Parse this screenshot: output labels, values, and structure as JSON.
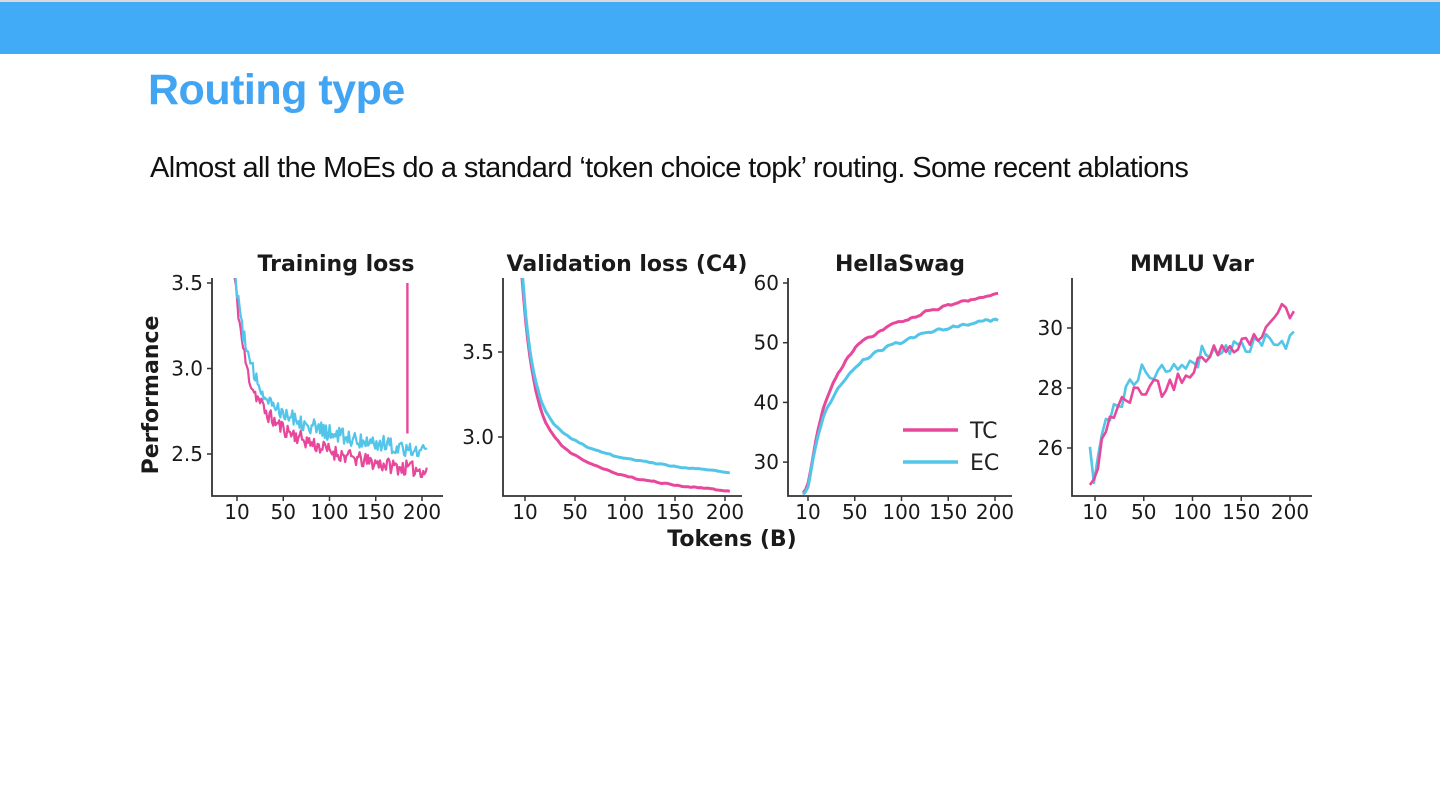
{
  "banner": {
    "color": "#42abf7"
  },
  "slide": {
    "title": "Routing type",
    "title_color": "#41a5f3",
    "body": "Almost all the MoEs do a standard ‘token choice topk’ routing. Some recent ablations"
  },
  "figure": {
    "ylabel": "Performance",
    "xlabel": "Tokens (B)",
    "text_color": "#1a1a1a",
    "axis_color": "#333333",
    "colors": {
      "TC": "#e8489b",
      "EC": "#52c5e8"
    },
    "legend": {
      "entries": [
        "TC",
        "EC"
      ]
    }
  },
  "chart_data": [
    {
      "type": "line",
      "title": "Training loss",
      "xlabel": "Tokens (B)",
      "ylabel": "Performance",
      "xtick_values": [
        10,
        50,
        100,
        150,
        200
      ],
      "xtick_labels": [
        "10",
        "50",
        "100",
        "150",
        "200"
      ],
      "ytick_values": [
        3.5,
        3.0,
        2.5
      ],
      "ytick_labels": [
        "3.5",
        "3.0",
        "2.5"
      ],
      "ylim": [
        2.25,
        3.53
      ],
      "series": [
        {
          "name": "TC",
          "color_key": "TC",
          "anchors": [
            [
              4,
              3.75
            ],
            [
              6,
              3.6
            ],
            [
              8,
              3.5
            ],
            [
              10,
              3.4
            ],
            [
              13,
              3.25
            ],
            [
              16,
              3.13
            ],
            [
              20,
              3.0
            ],
            [
              25,
              2.9
            ],
            [
              30,
              2.84
            ],
            [
              40,
              2.74
            ],
            [
              50,
              2.68
            ],
            [
              60,
              2.64
            ],
            [
              80,
              2.58
            ],
            [
              100,
              2.53
            ],
            [
              120,
              2.49
            ],
            [
              140,
              2.46
            ],
            [
              160,
              2.44
            ],
            [
              180,
              2.42
            ],
            [
              195,
              2.41
            ],
            [
              205,
              2.4
            ]
          ]
        },
        {
          "name": "EC",
          "color_key": "EC",
          "anchors": [
            [
              4,
              3.85
            ],
            [
              6,
              3.7
            ],
            [
              8,
              3.58
            ],
            [
              10,
              3.47
            ],
            [
              13,
              3.33
            ],
            [
              16,
              3.22
            ],
            [
              20,
              3.1
            ],
            [
              25,
              3.0
            ],
            [
              30,
              2.93
            ],
            [
              40,
              2.84
            ],
            [
              50,
              2.78
            ],
            [
              60,
              2.74
            ],
            [
              80,
              2.68
            ],
            [
              100,
              2.63
            ],
            [
              120,
              2.6
            ],
            [
              140,
              2.58
            ],
            [
              160,
              2.56
            ],
            [
              180,
              2.54
            ],
            [
              195,
              2.53
            ],
            [
              205,
              2.52
            ]
          ]
        }
      ],
      "vline": {
        "x": 185,
        "from": 2.62,
        "to": 3.5,
        "series": "TC"
      }
    },
    {
      "type": "line",
      "title": "Validation loss (C4)",
      "xtick_values": [
        10,
        50,
        100,
        150,
        200
      ],
      "xtick_labels": [
        "10",
        "50",
        "100",
        "150",
        "200"
      ],
      "ytick_values": [
        3.5,
        3.0
      ],
      "ytick_labels": [
        "3.5",
        "3.0"
      ],
      "ylim": [
        2.65,
        3.94
      ],
      "series": [
        {
          "name": "TC",
          "color_key": "TC",
          "anchors": [
            [
              7,
              3.95
            ],
            [
              9,
              3.8
            ],
            [
              11,
              3.66
            ],
            [
              14,
              3.5
            ],
            [
              17,
              3.38
            ],
            [
              20,
              3.28
            ],
            [
              25,
              3.16
            ],
            [
              30,
              3.08
            ],
            [
              37,
              3.01
            ],
            [
              45,
              2.95
            ],
            [
              55,
              2.9
            ],
            [
              70,
              2.85
            ],
            [
              85,
              2.81
            ],
            [
              100,
              2.78
            ],
            [
              120,
              2.75
            ],
            [
              140,
              2.73
            ],
            [
              160,
              2.71
            ],
            [
              180,
              2.7
            ],
            [
              205,
              2.68
            ]
          ]
        },
        {
          "name": "EC",
          "color_key": "EC",
          "anchors": [
            [
              7,
              4.0
            ],
            [
              9,
              3.85
            ],
            [
              11,
              3.7
            ],
            [
              14,
              3.54
            ],
            [
              17,
              3.42
            ],
            [
              20,
              3.33
            ],
            [
              25,
              3.22
            ],
            [
              30,
              3.15
            ],
            [
              37,
              3.08
            ],
            [
              45,
              3.03
            ],
            [
              55,
              2.99
            ],
            [
              70,
              2.94
            ],
            [
              85,
              2.91
            ],
            [
              100,
              2.88
            ],
            [
              120,
              2.86
            ],
            [
              140,
              2.84
            ],
            [
              160,
              2.82
            ],
            [
              180,
              2.81
            ],
            [
              205,
              2.79
            ]
          ]
        }
      ]
    },
    {
      "type": "line",
      "title": "HellaSwag",
      "xtick_values": [
        10,
        50,
        100,
        150,
        200
      ],
      "xtick_labels": [
        "10",
        "50",
        "100",
        "150",
        "200"
      ],
      "ytick_values": [
        60,
        50,
        40,
        30
      ],
      "ytick_labels": [
        "60",
        "50",
        "40",
        "30"
      ],
      "ylim": [
        24.3,
        60.8
      ],
      "has_legend": true,
      "series": [
        {
          "name": "TC",
          "color_key": "TC",
          "anchors": [
            [
              5,
              24.8
            ],
            [
              8,
              25.3
            ],
            [
              10,
              26.2
            ],
            [
              13,
              29
            ],
            [
              16,
              32
            ],
            [
              20,
              35.5
            ],
            [
              25,
              38.5
            ],
            [
              30,
              41
            ],
            [
              35,
              43
            ],
            [
              40,
              44.7
            ],
            [
              45,
              46
            ],
            [
              50,
              47.3
            ],
            [
              60,
              49.4
            ],
            [
              70,
              50.7
            ],
            [
              80,
              51.7
            ],
            [
              90,
              52.6
            ],
            [
              100,
              53.2
            ],
            [
              115,
              54.2
            ],
            [
              130,
              55.1
            ],
            [
              145,
              55.8
            ],
            [
              160,
              56.5
            ],
            [
              175,
              57.1
            ],
            [
              190,
              57.7
            ],
            [
              205,
              58.2
            ]
          ]
        },
        {
          "name": "EC",
          "color_key": "EC",
          "anchors": [
            [
              5,
              24.6
            ],
            [
              8,
              25.1
            ],
            [
              10,
              25.8
            ],
            [
              13,
              28.4
            ],
            [
              16,
              31.2
            ],
            [
              20,
              34.5
            ],
            [
              25,
              37.2
            ],
            [
              30,
              39.2
            ],
            [
              35,
              40.9
            ],
            [
              40,
              42.2
            ],
            [
              45,
              43.4
            ],
            [
              50,
              44.4
            ],
            [
              60,
              46.2
            ],
            [
              70,
              47.4
            ],
            [
              80,
              48.4
            ],
            [
              90,
              49.2
            ],
            [
              100,
              49.9
            ],
            [
              115,
              50.8
            ],
            [
              130,
              51.6
            ],
            [
              145,
              52.2
            ],
            [
              160,
              52.7
            ],
            [
              175,
              53.2
            ],
            [
              190,
              53.7
            ],
            [
              205,
              53.9
            ]
          ]
        }
      ]
    },
    {
      "type": "line",
      "title": "MMLU Var",
      "xtick_values": [
        10,
        50,
        100,
        150,
        200
      ],
      "xtick_labels": [
        "10",
        "50",
        "100",
        "150",
        "200"
      ],
      "ytick_values": [
        30,
        28,
        26
      ],
      "ytick_labels": [
        "30",
        "28",
        "26"
      ],
      "ylim": [
        24.4,
        31.7
      ],
      "series": [
        {
          "name": "EC",
          "color_key": "EC",
          "anchors": [
            [
              5,
              25.8
            ],
            [
              8,
              24.7
            ],
            [
              10,
              25.0
            ],
            [
              12,
              25.4
            ],
            [
              15,
              26.2
            ],
            [
              18,
              26.6
            ],
            [
              22,
              26.8
            ],
            [
              26,
              27.0
            ],
            [
              30,
              27.3
            ],
            [
              35,
              27.6
            ],
            [
              40,
              27.9
            ],
            [
              45,
              28.1
            ],
            [
              50,
              28.3
            ],
            [
              60,
              28.6
            ],
            [
              70,
              28.4
            ],
            [
              80,
              28.7
            ],
            [
              90,
              28.8
            ],
            [
              100,
              28.9
            ],
            [
              110,
              29.0
            ],
            [
              120,
              29.4
            ],
            [
              130,
              29.1
            ],
            [
              140,
              29.3
            ],
            [
              150,
              29.5
            ],
            [
              160,
              29.4
            ],
            [
              170,
              29.6
            ],
            [
              180,
              29.5
            ],
            [
              190,
              29.8
            ],
            [
              198,
              29.6
            ],
            [
              205,
              30.2
            ]
          ]
        },
        {
          "name": "TC",
          "color_key": "TC",
          "anchors": [
            [
              5,
              24.7
            ],
            [
              8,
              24.9
            ],
            [
              10,
              25.1
            ],
            [
              12,
              24.8
            ],
            [
              15,
              25.8
            ],
            [
              18,
              26.5
            ],
            [
              22,
              26.9
            ],
            [
              26,
              27.1
            ],
            [
              30,
              27.2
            ],
            [
              35,
              27.4
            ],
            [
              40,
              27.6
            ],
            [
              45,
              27.7
            ],
            [
              50,
              27.8
            ],
            [
              60,
              28.0
            ],
            [
              70,
              28.2
            ],
            [
              80,
              27.9
            ],
            [
              90,
              28.4
            ],
            [
              100,
              28.6
            ],
            [
              110,
              28.8
            ],
            [
              120,
              29.3
            ],
            [
              130,
              29.1
            ],
            [
              140,
              29.4
            ],
            [
              150,
              29.6
            ],
            [
              160,
              29.6
            ],
            [
              170,
              29.8
            ],
            [
              180,
              29.9
            ],
            [
              188,
              30.7
            ],
            [
              193,
              31.0
            ],
            [
              198,
              30.7
            ],
            [
              205,
              30.4
            ]
          ]
        }
      ]
    }
  ]
}
